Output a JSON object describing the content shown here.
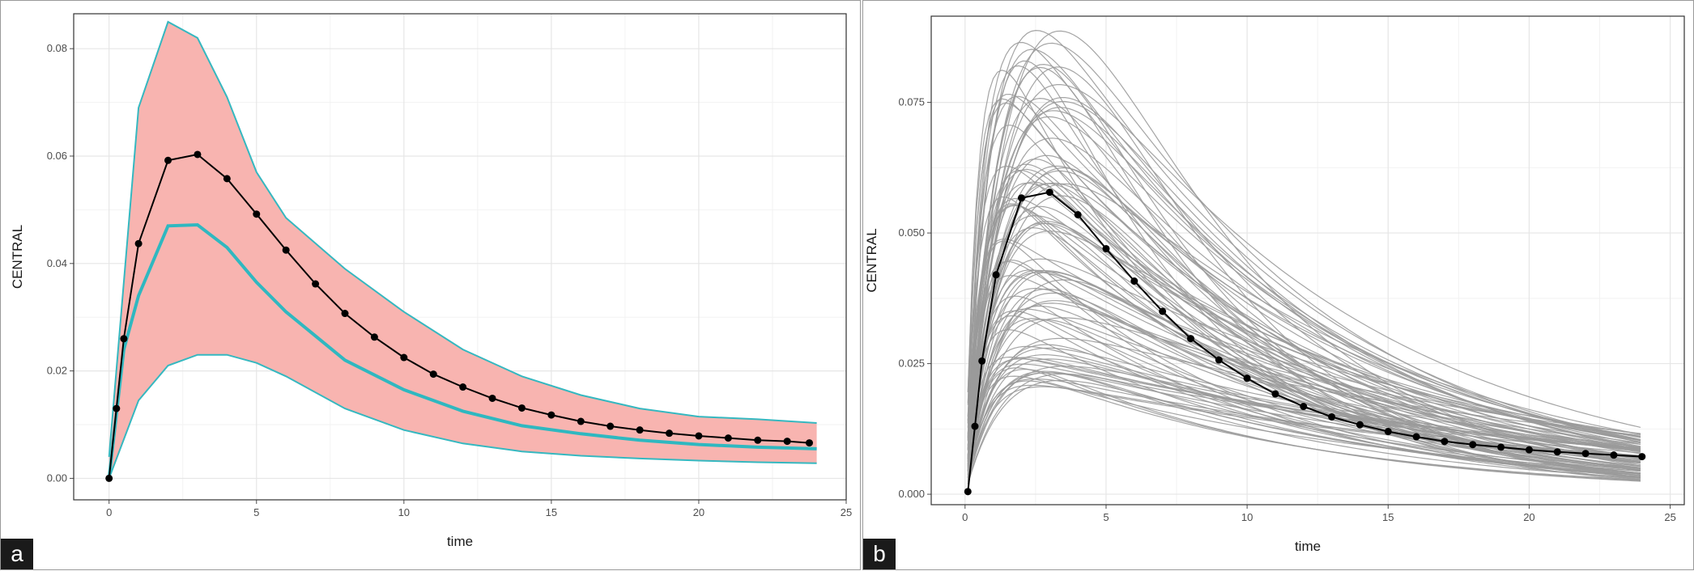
{
  "chart_data": [
    {
      "panel_label": "a",
      "type": "line",
      "xlabel": "time",
      "ylabel": "CENTRAL",
      "xlim": [
        -1.2,
        25
      ],
      "ylim": [
        -0.004,
        0.0865
      ],
      "xticks": [
        0,
        5,
        10,
        15,
        20,
        25
      ],
      "xtick_labels": [
        "0",
        "5",
        "10",
        "15",
        "20",
        "25"
      ],
      "yticks": [
        0,
        0.02,
        0.04,
        0.06,
        0.08
      ],
      "ytick_labels": [
        "0.00",
        "0.02",
        "0.04",
        "0.06",
        "0.08"
      ],
      "grid": true,
      "colors": {
        "ribbon": "#f8b4b0",
        "ribbon_edge": "#35b8c0",
        "median": "#2fb8c0",
        "observed": "#000000"
      },
      "ribbon": {
        "x": [
          0,
          1,
          2,
          3,
          4,
          5,
          6,
          8,
          10,
          12,
          14,
          16,
          18,
          20,
          22,
          24
        ],
        "upper": [
          0.004,
          0.069,
          0.085,
          0.082,
          0.071,
          0.057,
          0.0485,
          0.039,
          0.031,
          0.024,
          0.019,
          0.0155,
          0.013,
          0.0115,
          0.011,
          0.0103
        ],
        "lower": [
          0.0,
          0.0145,
          0.021,
          0.023,
          0.023,
          0.0215,
          0.019,
          0.013,
          0.009,
          0.0065,
          0.005,
          0.0042,
          0.0037,
          0.0033,
          0.003,
          0.0028
        ]
      },
      "median_line": {
        "x": [
          0,
          0.5,
          1,
          2,
          3,
          4,
          5,
          6,
          8,
          10,
          12,
          14,
          16,
          18,
          20,
          22,
          24
        ],
        "y": [
          0.0,
          0.024,
          0.034,
          0.047,
          0.0472,
          0.043,
          0.0365,
          0.031,
          0.022,
          0.0165,
          0.0125,
          0.0098,
          0.0083,
          0.0071,
          0.0063,
          0.0058,
          0.0055
        ]
      },
      "observed": {
        "x": [
          0,
          0.25,
          0.5,
          1,
          2,
          3,
          4,
          5,
          6,
          7,
          8,
          9,
          10,
          11,
          12,
          13,
          14,
          15,
          16,
          17,
          18,
          19,
          20,
          21,
          22,
          23,
          23.75
        ],
        "y": [
          0.0,
          0.013,
          0.026,
          0.0437,
          0.0592,
          0.0603,
          0.0558,
          0.0492,
          0.0425,
          0.0362,
          0.0307,
          0.0263,
          0.0225,
          0.0194,
          0.017,
          0.0149,
          0.0131,
          0.0118,
          0.0106,
          0.0097,
          0.009,
          0.0084,
          0.0079,
          0.0075,
          0.0071,
          0.0069,
          0.0066
        ]
      }
    },
    {
      "panel_label": "b",
      "type": "line",
      "xlabel": "time",
      "ylabel": "CENTRAL",
      "xlim": [
        -1.2,
        25.5
      ],
      "ylim": [
        -0.002,
        0.0915
      ],
      "xticks": [
        0,
        5,
        10,
        15,
        20,
        25
      ],
      "xtick_labels": [
        "0",
        "5",
        "10",
        "15",
        "20",
        "25"
      ],
      "yticks": [
        0,
        0.025,
        0.05,
        0.075
      ],
      "ytick_labels": [
        "0.000",
        "0.025",
        "0.050",
        "0.075"
      ],
      "grid": true,
      "colors": {
        "individuals": "#9a9a9a",
        "observed": "#000000"
      },
      "individual_curve_count": 100,
      "individual_profiles": {
        "peak_time_range": [
          1.3,
          3.6
        ],
        "peak_value_range": [
          0.02,
          0.089
        ],
        "value_at_24h_range": [
          0.002,
          0.011
        ]
      },
      "observed": {
        "x": [
          0.1,
          0.35,
          0.6,
          1.1,
          2,
          3,
          4,
          5,
          6,
          7,
          8,
          9,
          10,
          11,
          12,
          13,
          14,
          15,
          16,
          17,
          18,
          19,
          20,
          21,
          22,
          23,
          24
        ],
        "y": [
          0.0005,
          0.013,
          0.0255,
          0.042,
          0.0567,
          0.0578,
          0.0535,
          0.047,
          0.0408,
          0.035,
          0.0298,
          0.0257,
          0.0222,
          0.0192,
          0.0168,
          0.0148,
          0.0133,
          0.012,
          0.011,
          0.0101,
          0.0095,
          0.009,
          0.0085,
          0.0081,
          0.0078,
          0.0075,
          0.0072
        ]
      }
    }
  ]
}
